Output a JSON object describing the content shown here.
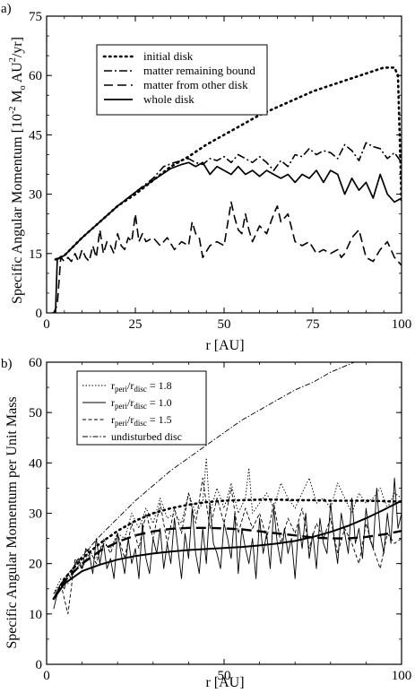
{
  "chart_data": [
    {
      "panel_label": "a)",
      "type": "line",
      "xlabel": "r [AU]",
      "ylabel_prefix": "Specific Angular Momentum [10",
      "ylabel_exp1": "-2",
      "ylabel_mid": " M",
      "ylabel_sub": "o",
      "ylabel_mid2": " AU",
      "ylabel_exp2": "2",
      "ylabel_suffix": "/yr]",
      "xlim": [
        0,
        100
      ],
      "ylim": [
        0,
        75
      ],
      "xticks": [
        "0",
        "25",
        "50",
        "75",
        "100"
      ],
      "yticks": [
        "0",
        "15",
        "30",
        "45",
        "60",
        "75"
      ],
      "legend_position": "top-left",
      "series": [
        {
          "name": "initial disk",
          "dash": "dotted",
          "x": [
            2.5,
            5,
            10,
            15,
            20,
            25,
            30,
            35,
            40,
            45,
            50,
            55,
            60,
            65,
            70,
            75,
            80,
            85,
            90,
            95,
            98,
            99,
            100
          ],
          "y": [
            13.5,
            14.5,
            19,
            23,
            27,
            30,
            33.5,
            37,
            39.5,
            42.5,
            45,
            47.5,
            50,
            52,
            54,
            56,
            57.5,
            59,
            60.5,
            62,
            62,
            60,
            28
          ]
        },
        {
          "name": "matter remaining bound",
          "dash": "dashdot",
          "x": [
            2.5,
            5,
            10,
            15,
            20,
            25,
            30,
            33,
            36,
            38,
            40,
            42,
            44,
            46,
            48,
            50,
            52,
            54,
            56,
            58,
            60,
            62,
            64,
            66,
            68,
            70,
            72,
            74,
            76,
            78,
            80,
            82,
            84,
            86,
            88,
            90,
            92,
            94,
            96,
            98,
            100
          ],
          "y": [
            13.5,
            14.5,
            19,
            23,
            27,
            30.5,
            34,
            37,
            38,
            38.5,
            39,
            38,
            37.5,
            39,
            38.5,
            39.5,
            38,
            40,
            39,
            38,
            39.5,
            38,
            36,
            38.5,
            37,
            40,
            39.5,
            41.5,
            40,
            41,
            40.5,
            39,
            42.5,
            41,
            38.5,
            43,
            42,
            41.5,
            39,
            40.5,
            38
          ]
        },
        {
          "name": "matter from other disk",
          "dash": "dashed",
          "x": [
            1.5,
            2,
            3,
            4,
            5,
            6,
            7,
            8,
            9,
            10,
            11,
            12,
            13,
            14,
            15,
            16,
            17,
            18,
            19,
            20,
            21,
            22,
            23,
            24,
            25,
            26,
            27,
            28,
            30,
            32,
            34,
            36,
            38,
            40,
            41,
            42,
            43,
            44,
            46,
            48,
            50,
            52,
            53,
            54,
            55,
            56,
            57,
            58,
            60,
            62,
            64,
            65,
            66,
            68,
            70,
            72,
            74,
            76,
            78,
            80,
            82,
            83,
            84,
            86,
            88,
            90,
            92,
            94,
            96,
            98,
            100
          ],
          "y": [
            0,
            0,
            2,
            14,
            13,
            14,
            13,
            15,
            13,
            16,
            14,
            13,
            17,
            14,
            21,
            15,
            18,
            17,
            15,
            20,
            17,
            16,
            19,
            18,
            25,
            18,
            20,
            18,
            19,
            17,
            19,
            16,
            18,
            17,
            23,
            20,
            19,
            14,
            17,
            18,
            17,
            28,
            24,
            21,
            20,
            25,
            21,
            18,
            22,
            20,
            25,
            27,
            23,
            25,
            18,
            17,
            18,
            15,
            16,
            15,
            16,
            14,
            15,
            19,
            21,
            14,
            13,
            16,
            18,
            14,
            12
          ]
        },
        {
          "name": "whole disk",
          "dash": "solid",
          "x": [
            2.5,
            3,
            5,
            10,
            15,
            20,
            25,
            30,
            35,
            38,
            40,
            42,
            44,
            46,
            48,
            50,
            52,
            54,
            56,
            58,
            60,
            62,
            64,
            66,
            68,
            70,
            72,
            74,
            76,
            78,
            80,
            82,
            84,
            86,
            88,
            90,
            92,
            94,
            96,
            98,
            100
          ],
          "y": [
            0,
            13.5,
            14.5,
            19,
            23,
            27,
            30.5,
            33.5,
            36.5,
            37.5,
            38,
            37,
            38,
            35,
            37,
            36,
            35,
            37,
            35,
            36,
            34.5,
            36,
            35,
            34,
            35,
            33,
            35,
            34,
            36,
            33,
            36,
            35,
            30,
            34,
            31,
            33,
            29,
            35,
            30,
            28,
            29
          ]
        }
      ]
    },
    {
      "panel_label": "b)",
      "type": "line",
      "xlabel": "r [AU]",
      "ylabel": "Specific Angular Momentum per Unit Mass",
      "xlim": [
        0,
        100
      ],
      "ylim": [
        0,
        60
      ],
      "xticks": [
        "0",
        "50",
        "100"
      ],
      "yticks": [
        "0",
        "10",
        "20",
        "30",
        "40",
        "50",
        "60"
      ],
      "legend_position": "top-left",
      "legend": [
        {
          "pre": "r",
          "sub1": "peri",
          "mid": "/r",
          "sub2": "disc",
          "post": " = 1.8",
          "dash": "dotted-thin"
        },
        {
          "pre": "r",
          "sub1": "peri",
          "mid": "/r",
          "sub2": "disc",
          "post": " = 1.0",
          "dash": "solid-thin"
        },
        {
          "pre": "r",
          "sub1": "peri",
          "mid": "/r",
          "sub2": "disc",
          "post": " = 1.5",
          "dash": "dashed-thin"
        },
        {
          "pre": "undisturbed disc",
          "sub1": "",
          "mid": "",
          "sub2": "",
          "post": "",
          "dash": "dashdot-thin"
        }
      ],
      "series": [
        {
          "name": "r_peri/r_disc = 1.8",
          "dash": "dotted-thin",
          "x": [
            2,
            4,
            6,
            8,
            10,
            12,
            14,
            16,
            18,
            20,
            22,
            24,
            26,
            28,
            30,
            32,
            34,
            36,
            38,
            40,
            42,
            44,
            45,
            46,
            48,
            50,
            52,
            54,
            56,
            57,
            58,
            60,
            62,
            64,
            66,
            68,
            70,
            72,
            74,
            76,
            78,
            80,
            82,
            84,
            86,
            88,
            90,
            92,
            94,
            96,
            98,
            100
          ],
          "y": [
            14,
            17,
            16,
            20,
            19,
            22,
            21,
            24,
            23,
            26,
            25,
            30,
            27,
            31,
            28,
            33,
            29,
            30,
            28,
            34,
            30,
            32,
            41,
            30,
            35,
            31,
            36,
            30,
            33,
            39,
            30,
            32,
            34,
            31,
            36,
            33,
            31,
            34,
            37,
            32,
            33,
            31,
            36,
            33,
            30,
            34,
            32,
            33,
            35,
            31,
            34,
            33
          ]
        },
        {
          "name": "r_peri/r_disc = 1.0",
          "dash": "solid-thin",
          "x": [
            2,
            3,
            4,
            5,
            6,
            7,
            8,
            9,
            10,
            11,
            12,
            13,
            14,
            15,
            16,
            17,
            18,
            19,
            20,
            21,
            22,
            23,
            24,
            25,
            26,
            27,
            28,
            29,
            30,
            31,
            32,
            33,
            34,
            35,
            36,
            37,
            38,
            39,
            40,
            41,
            42,
            43,
            44,
            45,
            46,
            47,
            48,
            49,
            50,
            51,
            52,
            53,
            54,
            55,
            56,
            57,
            58,
            59,
            60,
            61,
            62,
            63,
            64,
            65,
            66,
            67,
            68,
            69,
            70,
            71,
            72,
            73,
            74,
            75,
            76,
            77,
            78,
            79,
            80,
            81,
            82,
            83,
            84,
            85,
            86,
            87,
            88,
            89,
            90,
            91,
            92,
            93,
            94,
            95,
            96,
            97,
            98,
            99,
            100
          ],
          "y": [
            11,
            14,
            16,
            15,
            18,
            17,
            20,
            21,
            19,
            23,
            22,
            18,
            25,
            20,
            24,
            19,
            21,
            17,
            26,
            22,
            18,
            25,
            20,
            23,
            17,
            28,
            21,
            18,
            25,
            22,
            27,
            19,
            24,
            20,
            29,
            23,
            17,
            26,
            21,
            31,
            22,
            18,
            27,
            20,
            32,
            24,
            22,
            19,
            28,
            25,
            21,
            30,
            18,
            27,
            23,
            20,
            25,
            17,
            29,
            22,
            26,
            19,
            31,
            24,
            20,
            27,
            22,
            25,
            17,
            28,
            23,
            30,
            21,
            26,
            19,
            29,
            24,
            22,
            32,
            25,
            20,
            30,
            26,
            22,
            33,
            24,
            27,
            21,
            31,
            25,
            23,
            35,
            26,
            22,
            30,
            24,
            37,
            27,
            30
          ]
        },
        {
          "name": "r_peri/r_disc = 1.5",
          "dash": "dashed-thin",
          "x": [
            2,
            4,
            6,
            8,
            10,
            12,
            14,
            16,
            18,
            20,
            22,
            24,
            26,
            28,
            30,
            32,
            34,
            36,
            38,
            40,
            42,
            44,
            46,
            48,
            50,
            52,
            54,
            56,
            58,
            60,
            62,
            64,
            66,
            68,
            70,
            72,
            74,
            76,
            78,
            80,
            82,
            84,
            86,
            88,
            90,
            92,
            94,
            96,
            98,
            100
          ],
          "y": [
            13,
            16,
            10,
            21,
            19,
            23,
            20,
            25,
            22,
            26,
            21,
            28,
            23,
            30,
            25,
            32,
            24,
            31,
            26,
            34,
            28,
            37,
            27,
            33,
            28,
            35,
            26,
            31,
            27,
            30,
            25,
            32,
            24,
            29,
            26,
            31,
            23,
            28,
            25,
            29,
            22,
            27,
            24,
            20,
            28,
            23,
            19,
            26,
            24,
            25
          ]
        },
        {
          "name": "undisturbed disc",
          "dash": "dashdot-thin",
          "x": [
            2,
            5,
            10,
            15,
            20,
            25,
            30,
            35,
            40,
            45,
            50,
            55,
            60,
            65,
            70,
            75,
            80,
            85,
            90,
            95,
            100
          ],
          "y": [
            14,
            17,
            21.5,
            25.5,
            29,
            32.5,
            35.5,
            38.5,
            41,
            43.5,
            46,
            48.5,
            50.5,
            52.5,
            54.5,
            56,
            58,
            59.5,
            61,
            62.5,
            64
          ]
        },
        {
          "name": "",
          "dash": "fit-bold-dotted",
          "x": [
            2,
            5,
            10,
            15,
            20,
            25,
            30,
            35,
            40,
            45,
            50,
            55,
            60,
            65,
            70,
            75,
            80,
            85,
            90,
            95,
            100
          ],
          "y": [
            13,
            17,
            21,
            24,
            26.5,
            28.5,
            30,
            31,
            31.7,
            32.2,
            32.5,
            32.6,
            32.7,
            32.7,
            32.6,
            32.6,
            32.5,
            32.5,
            32.5,
            32.4,
            32.3
          ]
        },
        {
          "name": "",
          "dash": "fit-bold-dashed",
          "x": [
            2,
            5,
            10,
            15,
            20,
            25,
            30,
            35,
            40,
            45,
            50,
            55,
            60,
            65,
            70,
            75,
            80,
            85,
            90,
            95,
            100
          ],
          "y": [
            13,
            16.5,
            20,
            22.5,
            24.3,
            25.6,
            26.4,
            26.9,
            27.1,
            27.1,
            27,
            26.8,
            26.4,
            26,
            25.6,
            25.2,
            25,
            25,
            25.3,
            25.8,
            26.5
          ]
        },
        {
          "name": "",
          "dash": "fit-bold-solid",
          "x": [
            2,
            5,
            10,
            15,
            20,
            25,
            30,
            35,
            40,
            45,
            50,
            55,
            60,
            65,
            70,
            75,
            80,
            85,
            90,
            95,
            100
          ],
          "y": [
            13,
            16,
            18.5,
            19.8,
            20.8,
            21.5,
            22,
            22.4,
            22.7,
            22.9,
            23.1,
            23.3,
            23.6,
            24,
            24.5,
            25.3,
            26.3,
            27.5,
            29,
            30.7,
            32.5
          ]
        }
      ]
    }
  ]
}
